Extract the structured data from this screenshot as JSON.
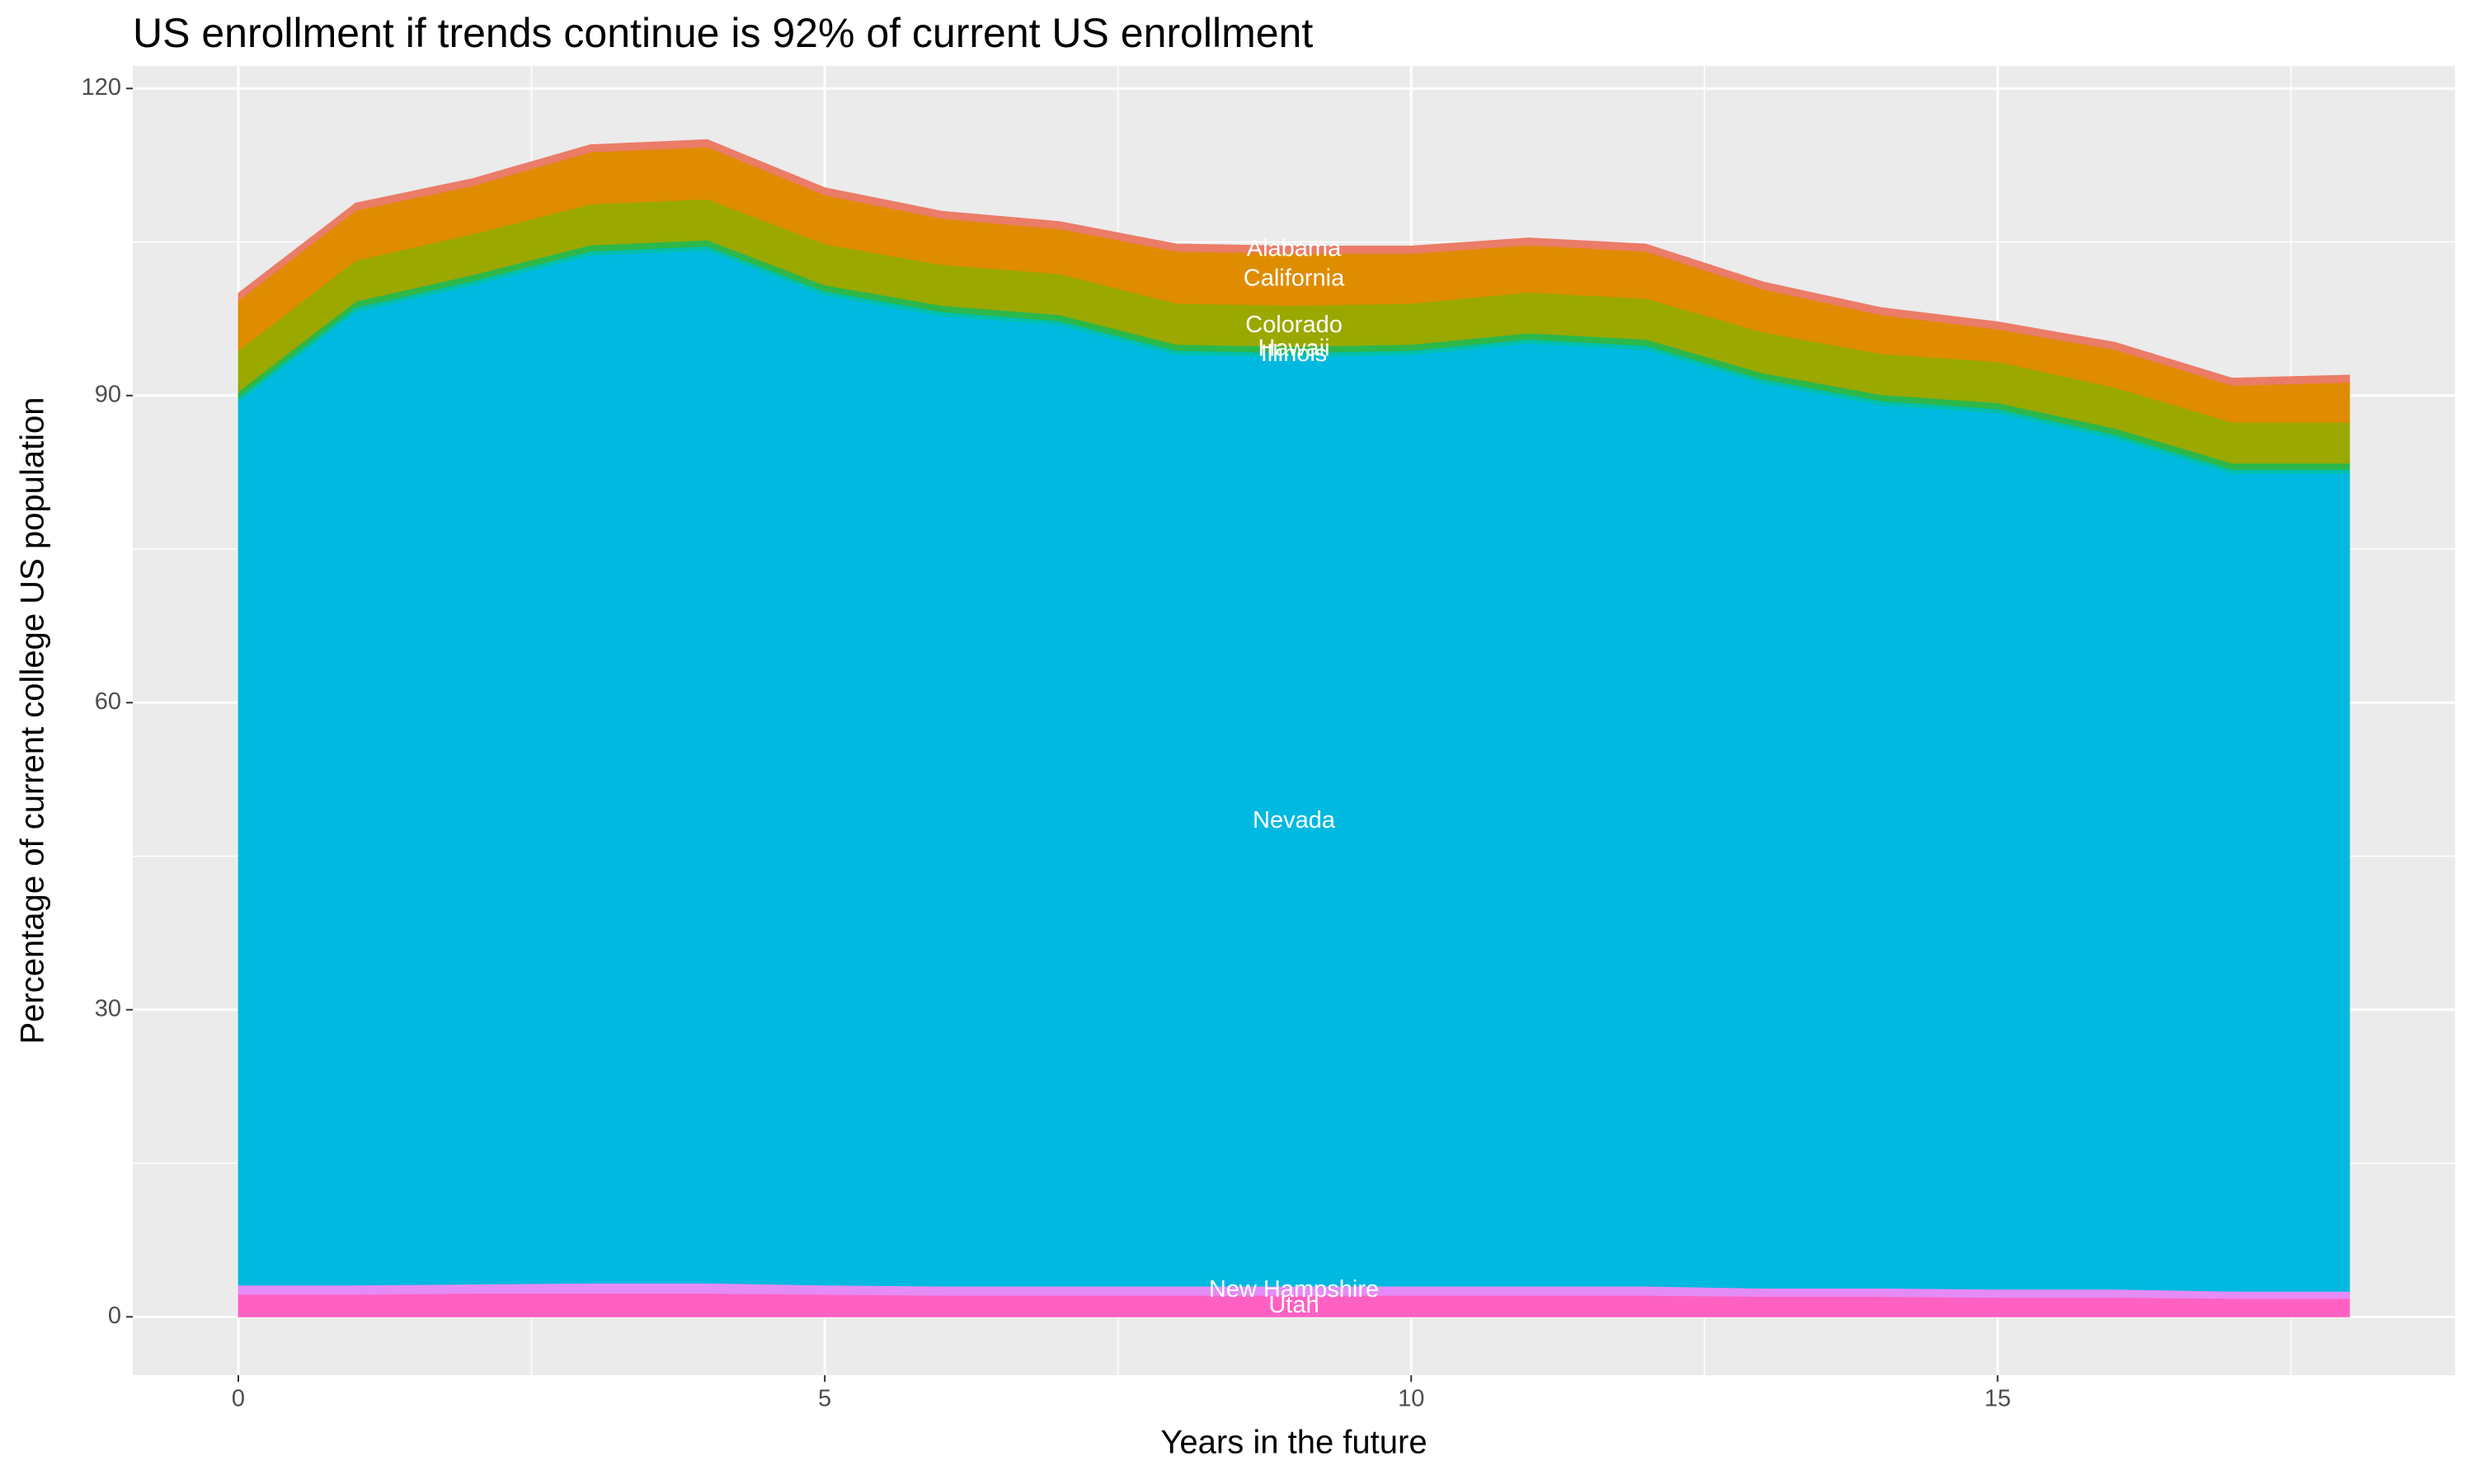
{
  "chart_data": {
    "type": "stacked_area",
    "title": "US enrollment if trends continue is 92% of current US enrollment",
    "x_label": "Years in the future",
    "y_label": "Percentage of current college US population",
    "x": [
      0,
      1,
      2,
      3,
      4,
      5,
      6,
      7,
      8,
      9,
      10,
      11,
      12,
      13,
      14,
      15,
      16,
      17,
      18
    ],
    "xlim": [
      -0.9,
      18.9
    ],
    "xticks": [
      0,
      5,
      10,
      15
    ],
    "ylim": [
      -5.7,
      122.2
    ],
    "yticks": [
      0,
      30,
      60,
      90,
      120
    ],
    "grid": true,
    "series": [
      {
        "name": "Utah",
        "color": "#ff61c3",
        "values": [
          2.2,
          2.2,
          2.3,
          2.3,
          2.3,
          2.2,
          2.1,
          2.1,
          2.1,
          2.1,
          2.1,
          2.1,
          2.1,
          2.0,
          2.0,
          1.9,
          1.9,
          1.8,
          1.8
        ]
      },
      {
        "name": "New Hampshire",
        "color": "#e58bf5",
        "values": [
          0.9,
          0.9,
          0.9,
          1.0,
          1.0,
          0.9,
          0.9,
          0.9,
          0.9,
          0.9,
          0.9,
          0.9,
          0.9,
          0.8,
          0.8,
          0.8,
          0.8,
          0.7,
          0.7
        ]
      },
      {
        "name": "Nevada",
        "color": "#00b9e0",
        "values": [
          86.3,
          95.1,
          97.6,
          100.4,
          100.9,
          96.7,
          94.8,
          93.9,
          91.0,
          90.8,
          91.0,
          92.1,
          91.5,
          88.4,
          86.3,
          85.6,
          83.1,
          79.9,
          79.9
        ]
      },
      {
        "name": "Illinois",
        "color": "#00bfae",
        "values": [
          0.4,
          0.4,
          0.4,
          0.4,
          0.4,
          0.4,
          0.4,
          0.4,
          0.4,
          0.4,
          0.4,
          0.4,
          0.4,
          0.4,
          0.4,
          0.4,
          0.4,
          0.4,
          0.4
        ]
      },
      {
        "name": "Hawaii",
        "color": "#2cb84a",
        "values": [
          0.6,
          0.6,
          0.6,
          0.6,
          0.6,
          0.6,
          0.6,
          0.6,
          0.6,
          0.6,
          0.6,
          0.6,
          0.6,
          0.6,
          0.6,
          0.6,
          0.6,
          0.6,
          0.6
        ]
      },
      {
        "name": "Colorado",
        "color": "#9aa800",
        "values": [
          4.0,
          4.0,
          4.0,
          4.0,
          4.0,
          4.0,
          4.0,
          4.0,
          4.0,
          4.0,
          4.0,
          4.0,
          4.0,
          4.0,
          4.0,
          4.0,
          4.0,
          4.0,
          4.0
        ]
      },
      {
        "name": "California",
        "color": "#df8c00",
        "values": [
          4.9,
          4.9,
          4.7,
          5.1,
          5.1,
          4.8,
          4.5,
          4.4,
          5.1,
          5.1,
          4.9,
          4.6,
          4.6,
          4.2,
          3.8,
          3.2,
          3.7,
          3.6,
          3.9
        ]
      },
      {
        "name": "Alabama",
        "color": "#eb7c68",
        "values": [
          0.7,
          0.7,
          0.7,
          0.7,
          0.7,
          0.7,
          0.7,
          0.7,
          0.7,
          0.7,
          0.7,
          0.7,
          0.7,
          0.7,
          0.7,
          0.7,
          0.7,
          0.7,
          0.7
        ]
      }
    ]
  }
}
